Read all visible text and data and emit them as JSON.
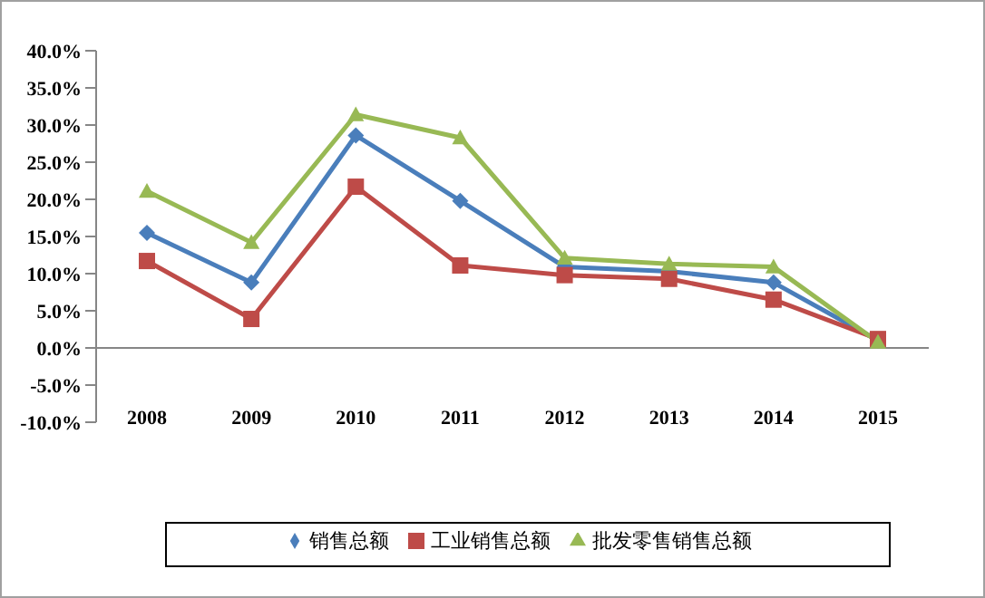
{
  "chart_data": {
    "type": "line",
    "categories": [
      "2008",
      "2009",
      "2010",
      "2011",
      "2012",
      "2013",
      "2014",
      "2015"
    ],
    "series": [
      {
        "name": "销售总额",
        "color": "#4a7ebb",
        "marker": "diamond",
        "values": [
          15.5,
          8.8,
          28.6,
          19.8,
          10.9,
          10.3,
          8.8,
          1.0
        ]
      },
      {
        "name": "工业销售总额",
        "color": "#be4b48",
        "marker": "square",
        "values": [
          11.7,
          3.9,
          21.7,
          11.1,
          9.8,
          9.3,
          6.5,
          1.2
        ]
      },
      {
        "name": "批发零售销售总额",
        "color": "#98b954",
        "marker": "triangle",
        "values": [
          21.1,
          14.2,
          31.4,
          28.3,
          12.1,
          11.3,
          10.9,
          0.8
        ]
      }
    ],
    "ylim": [
      -10,
      40
    ],
    "yticks": [
      {
        "value": -10,
        "label": "-10.0%"
      },
      {
        "value": -5,
        "label": "-5.0%"
      },
      {
        "value": 0,
        "label": "0.0%"
      },
      {
        "value": 5,
        "label": "5.0%"
      },
      {
        "value": 10,
        "label": "10.0%"
      },
      {
        "value": 15,
        "label": "15.0%"
      },
      {
        "value": 20,
        "label": "20.0%"
      },
      {
        "value": 25,
        "label": "25.0%"
      },
      {
        "value": 30,
        "label": "30.0%"
      },
      {
        "value": 35,
        "label": "35.0%"
      },
      {
        "value": 40,
        "label": "40.0%"
      }
    ],
    "legend": "bottom",
    "line_style": "solid"
  }
}
